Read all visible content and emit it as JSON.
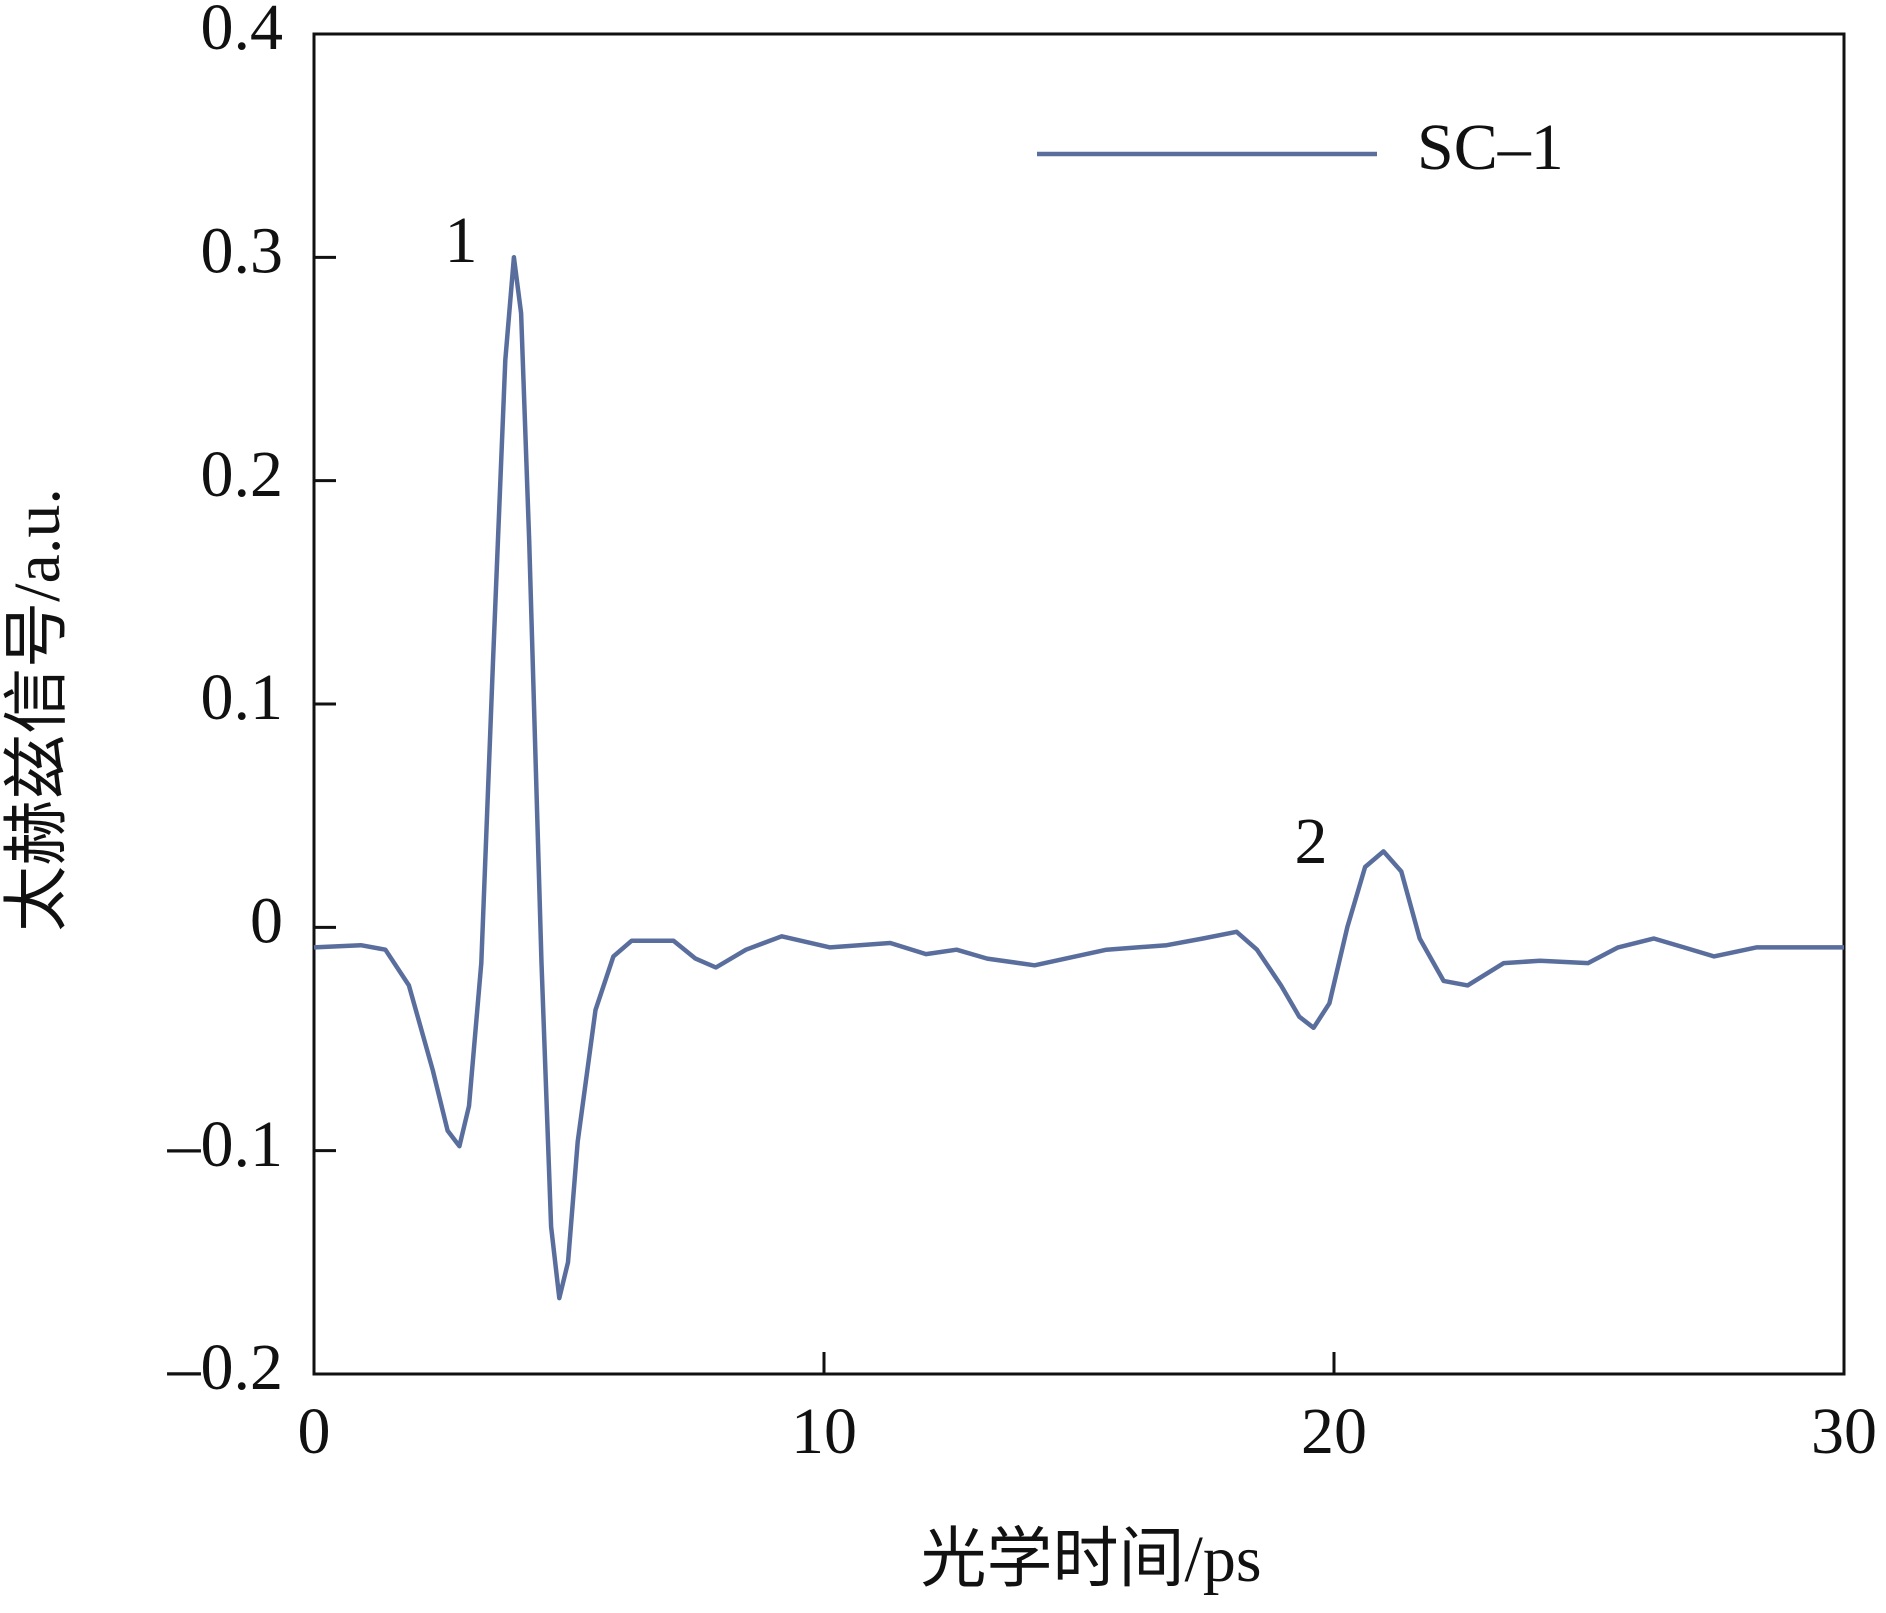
{
  "chart_data": {
    "type": "line",
    "xlabel": "光学时间/ps",
    "ylabel": "太赫兹信号/a.u.",
    "annotations": [
      "1",
      "2"
    ],
    "xlim": [
      0,
      30
    ],
    "xticks": [
      0,
      10,
      20,
      30
    ],
    "ylim": [
      -0.2,
      0.4
    ],
    "yticks": [
      {
        "value": -0.2,
        "label": "–0.2"
      },
      {
        "value": -0.1,
        "label": "–0.1"
      },
      0,
      0.1,
      0.2,
      0.3,
      0.4
    ],
    "legend": "upper right",
    "series": [
      {
        "name": "SC–1",
        "color": "#5a6e9e",
        "x": [
          0,
          0.92,
          1.4,
          1.86,
          2.33,
          2.62,
          2.85,
          3.04,
          3.28,
          3.51,
          3.75,
          3.92,
          4.06,
          4.22,
          4.46,
          4.65,
          4.81,
          4.98,
          5.17,
          5.52,
          5.87,
          6.23,
          7.05,
          7.48,
          7.88,
          8.47,
          9.17,
          10.12,
          11.3,
          12.0,
          12.6,
          13.2,
          14.13,
          15.54,
          16.72,
          17.43,
          18.09,
          18.49,
          18.96,
          19.32,
          19.6,
          19.91,
          20.26,
          20.61,
          20.97,
          21.32,
          21.68,
          22.15,
          22.62,
          23.33,
          24.04,
          24.98,
          25.57,
          26.27,
          26.86,
          27.45,
          28.28,
          30
        ],
        "values": [
          -0.009,
          -0.008,
          -0.01,
          -0.026,
          -0.064,
          -0.091,
          -0.098,
          -0.08,
          -0.016,
          0.119,
          0.254,
          0.3,
          0.275,
          0.173,
          -0.016,
          -0.134,
          -0.166,
          -0.15,
          -0.096,
          -0.037,
          -0.013,
          -0.006,
          -0.006,
          -0.014,
          -0.018,
          -0.01,
          -0.004,
          -0.009,
          -0.007,
          -0.012,
          -0.01,
          -0.014,
          -0.017,
          -0.01,
          -0.008,
          -0.005,
          -0.002,
          -0.01,
          -0.026,
          -0.04,
          -0.045,
          -0.034,
          0,
          0.027,
          0.034,
          0.025,
          -0.005,
          -0.024,
          -0.026,
          -0.016,
          -0.015,
          -0.016,
          -0.009,
          -0.005,
          -0.009,
          -0.013,
          -0.009,
          -0.009
        ]
      }
    ]
  }
}
